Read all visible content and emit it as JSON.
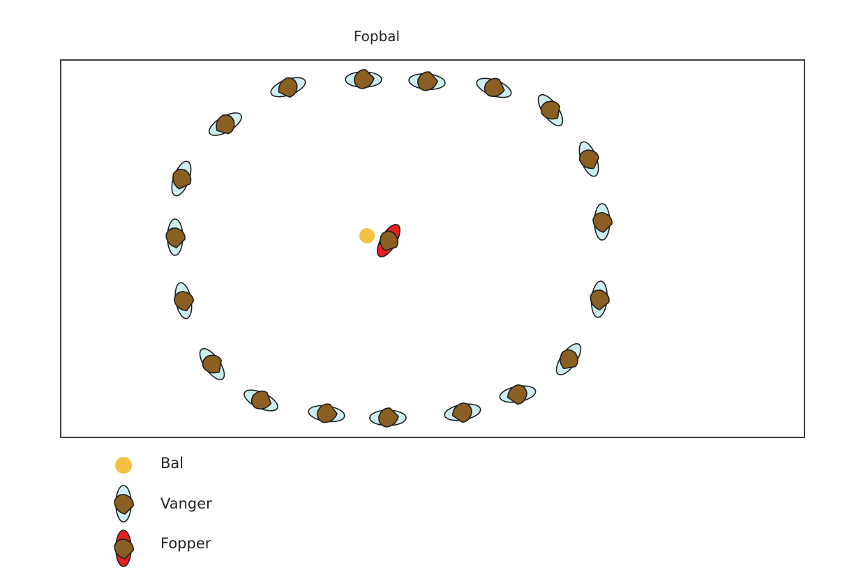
{
  "title": "Fopbal",
  "colors": {
    "ball": "#f5c142",
    "catcher_body": "#cdeef0",
    "fopper_body": "#e8201f",
    "head": "#8b5e22",
    "outline": "#1f1f1f"
  },
  "legend": [
    {
      "key": "ball",
      "label": "Bal",
      "icon": "ball-icon"
    },
    {
      "key": "catcher",
      "label": "Vanger",
      "icon": "catcher-icon"
    },
    {
      "key": "fopper",
      "label": "Fopper",
      "icon": "fopper-icon"
    }
  ]
}
